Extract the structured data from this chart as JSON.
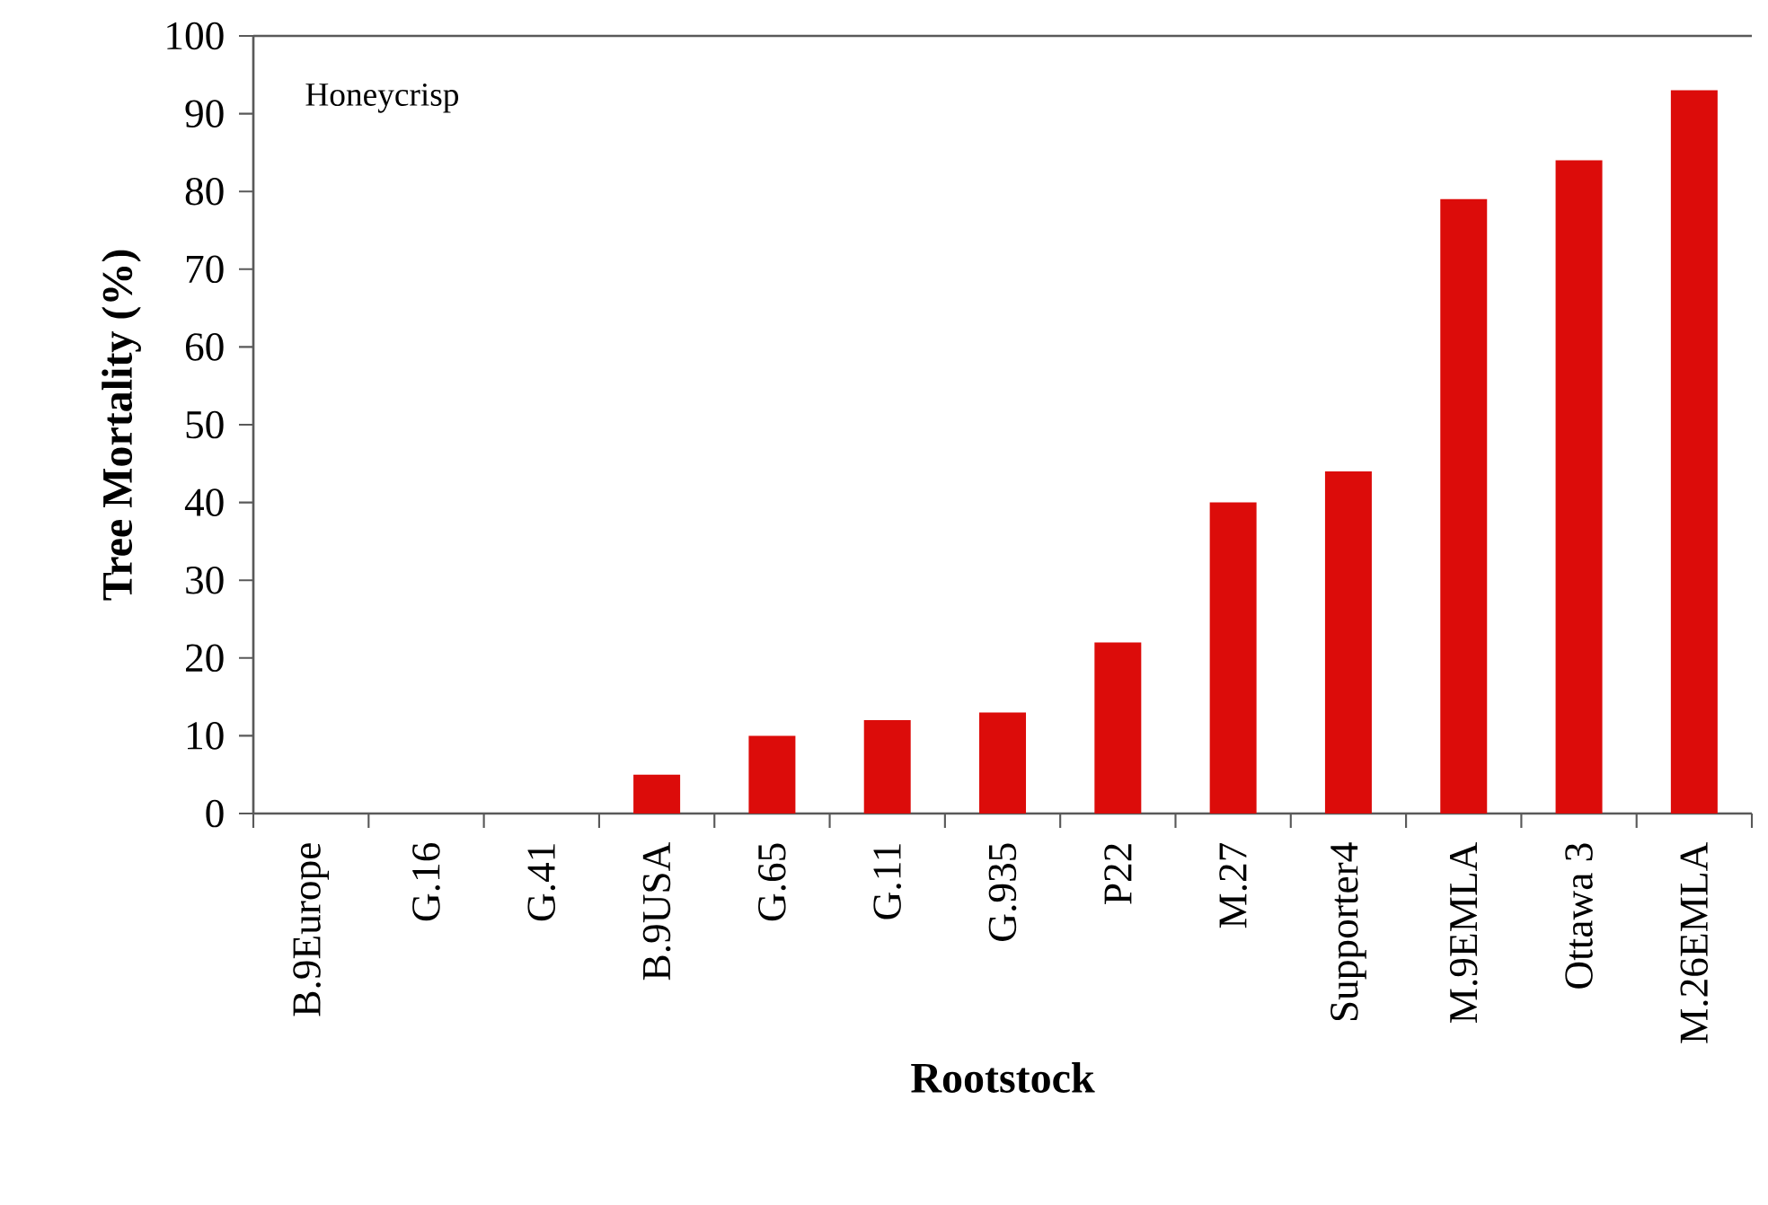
{
  "chart_data": {
    "type": "bar",
    "xlabel": "Rootstock",
    "ylabel": "Tree Mortality (%)",
    "annotations": [
      "Honeycrisp"
    ],
    "categories": [
      "B.9Europe",
      "G.16",
      "G.41",
      "B.9USA",
      "G.65",
      "G.11",
      "G.935",
      "P22",
      "M.27",
      "Supporter4",
      "M.9EMLA",
      "Ottawa 3",
      "M.26EMLA"
    ],
    "values": [
      0,
      0,
      0,
      5,
      10,
      12,
      13,
      22,
      40,
      44,
      79,
      84,
      93
    ],
    "color": "#dc0c0a",
    "ylim": [
      0,
      100
    ],
    "yticks": [
      0,
      10,
      20,
      30,
      40,
      50,
      60,
      70,
      80,
      90,
      100
    ]
  }
}
